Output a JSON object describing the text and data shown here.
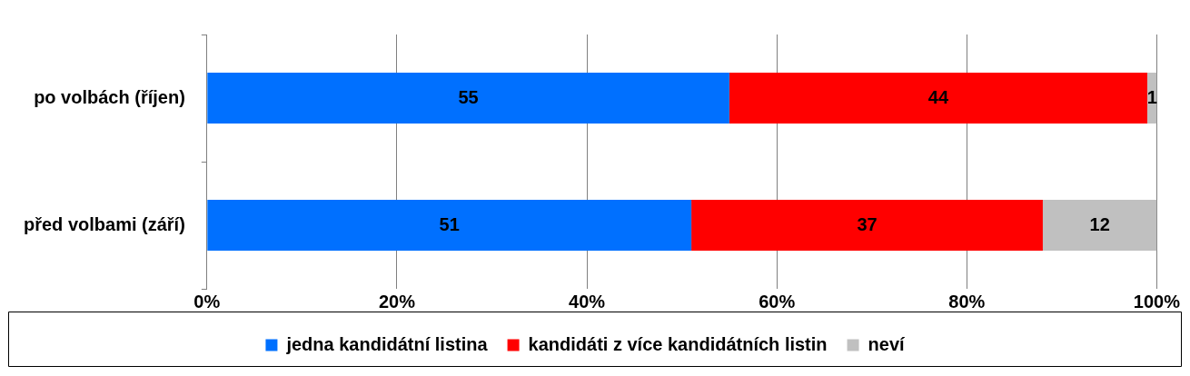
{
  "chart_data": {
    "type": "bar",
    "orientation": "horizontal",
    "stacked": true,
    "categories": [
      "po volbách (říjen)",
      "před volbami (září)"
    ],
    "series": [
      {
        "name": "jedna kandidátní listina",
        "color": "#0070ff",
        "values": [
          55,
          51
        ]
      },
      {
        "name": "kandidáti z více kandidátních listin",
        "color": "#ff0000",
        "values": [
          44,
          37
        ]
      },
      {
        "name": "neví",
        "color": "#c0c0c0",
        "values": [
          1,
          12
        ]
      }
    ],
    "xlim": [
      0,
      100
    ],
    "xticks": [
      {
        "value": 0,
        "label": "0%"
      },
      {
        "value": 20,
        "label": "20%"
      },
      {
        "value": 40,
        "label": "40%"
      },
      {
        "value": 60,
        "label": "60%"
      },
      {
        "value": 80,
        "label": "80%"
      },
      {
        "value": 100,
        "label": "100%"
      }
    ],
    "grid": "x",
    "legend": "bottom",
    "data_labels": true
  }
}
